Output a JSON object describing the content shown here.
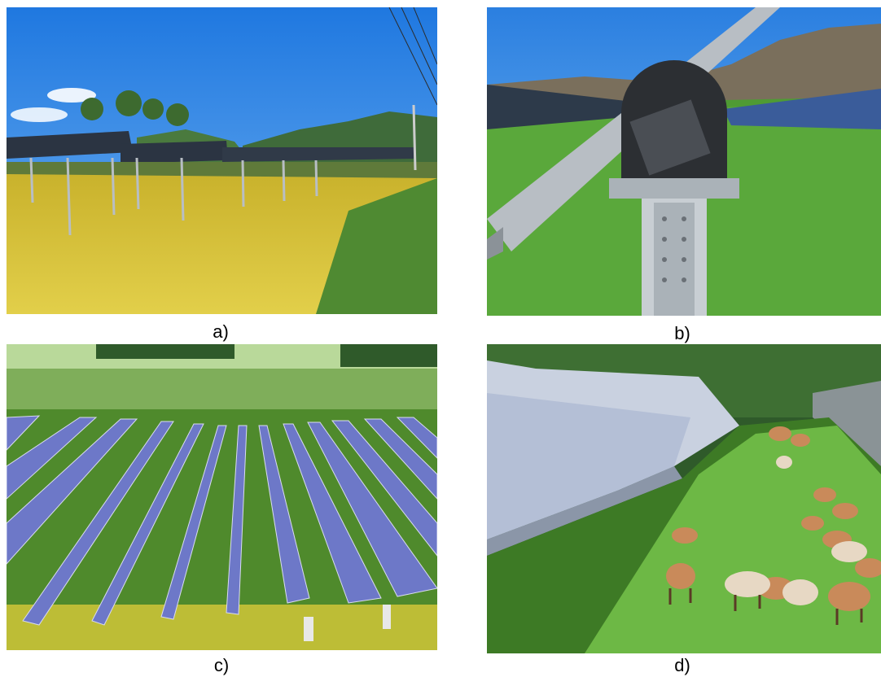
{
  "panels": [
    {
      "caption": "a)"
    },
    {
      "caption": "b)"
    },
    {
      "caption": "c)"
    },
    {
      "caption": "d)"
    }
  ],
  "colors": {
    "sky": "#2f86e8",
    "panel_dark": "#2a3340",
    "rice": "#d8c23a",
    "grass": "#4e9a2e",
    "steel": "#a9b0b6",
    "sheep": "#c98a5a"
  }
}
